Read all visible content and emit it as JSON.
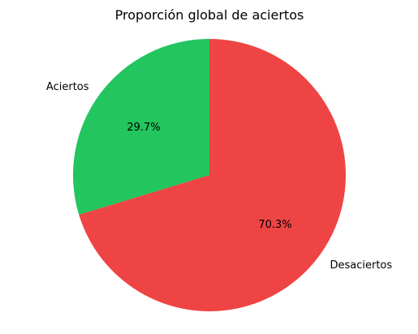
{
  "chart_data": {
    "type": "pie",
    "title": "Proporción global de aciertos",
    "slices": [
      {
        "label": "Aciertos",
        "value": 29.7,
        "pct_label": "29.7%",
        "color": "#22c55e"
      },
      {
        "label": "Desaciertos",
        "value": 70.3,
        "pct_label": "70.3%",
        "color": "#ef4444"
      }
    ],
    "start_angle": 90,
    "direction": "counterclockwise"
  }
}
